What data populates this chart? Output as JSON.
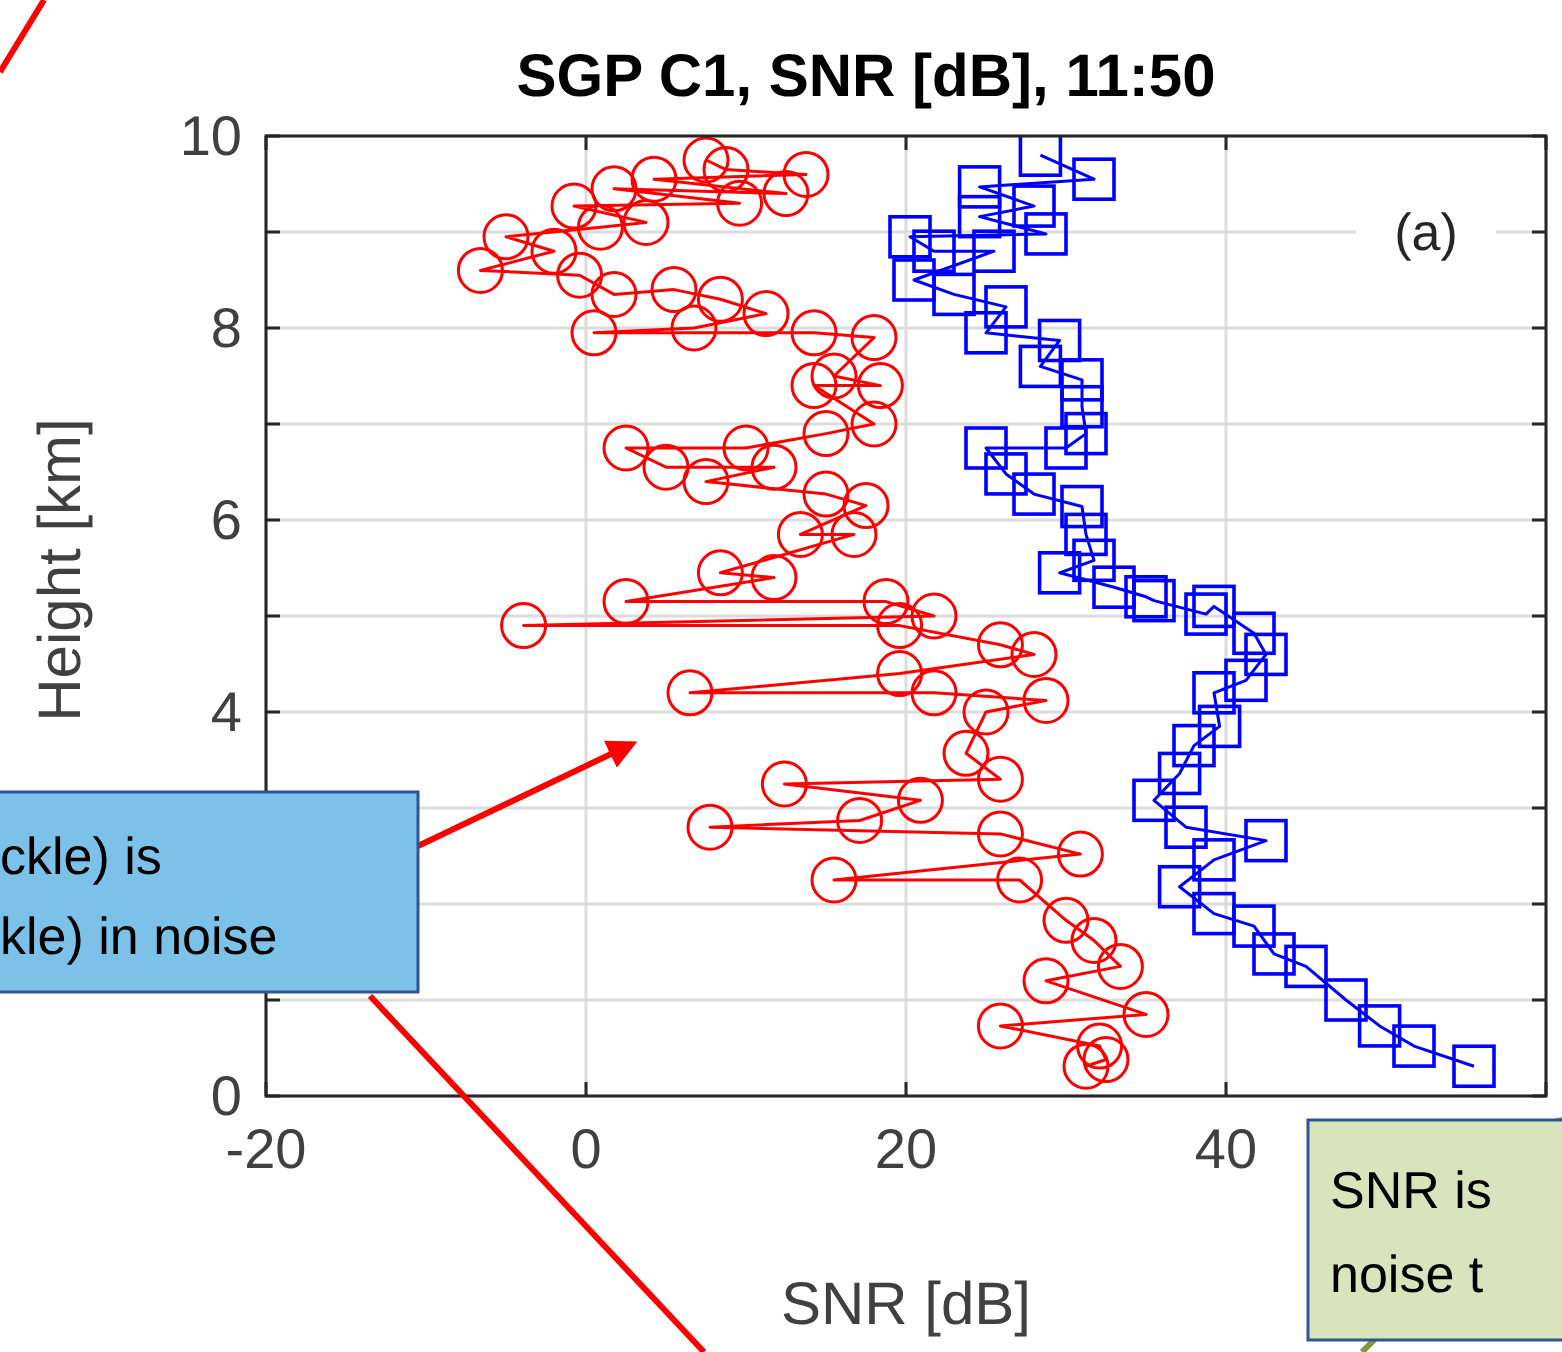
{
  "chart_data": {
    "type": "line",
    "title": "SGP C1, SNR [dB], 11:50",
    "xlabel": "SNR [dB]",
    "ylabel": "Height [km]",
    "xlim": [
      -20,
      60
    ],
    "xticks": [
      -20,
      0,
      20,
      40,
      {
        "value": 60,
        "label": null
      }
    ],
    "ylim": [
      0,
      10
    ],
    "yticks": [
      0,
      {
        "value": 1,
        "label": null
      },
      {
        "value": 2,
        "label": null
      },
      {
        "value": 3,
        "label": null
      },
      4,
      {
        "value": 5,
        "label": null
      },
      6,
      {
        "value": 7,
        "label": null
      },
      8,
      {
        "value": 9,
        "label": null
      },
      10
    ],
    "grid": true,
    "annotations": [
      "(a)",
      "ckle) is\nkle) in noise",
      "SNR is\nnoise t"
    ],
    "series": [
      {
        "color": "#ff0000",
        "marker": "circle",
        "x": [
          7.5,
          8.75,
          13.75,
          4.25,
          12.5,
          1.75,
          9.6,
          -0.75,
          3.75,
          0.9,
          -5,
          -2,
          -6.6,
          -0.4,
          1.75,
          5.5,
          8.4,
          11.25,
          6.75,
          0.5,
          14.25,
          18,
          15.5,
          18.4,
          14.25,
          18,
          15,
          10,
          2.5,
          5,
          11.75,
          7.5,
          15,
          17.5,
          13.4,
          16.75,
          8.4,
          11.75,
          2.5,
          18.75,
          21.75,
          -3.9,
          19.6,
          25.9,
          28,
          19.6,
          6.5,
          21.75,
          28.75,
          25,
          23.75,
          25.9,
          12.4,
          20.9,
          17.1,
          7.75,
          25.9,
          30.9,
          15.5,
          27.1,
          30,
          31.75,
          33.4,
          28.75,
          35,
          25.9,
          32.1,
          32.5,
          31.25
        ],
        "values": [
          9.75,
          9.65,
          9.6,
          9.55,
          9.4,
          9.45,
          9.3,
          9.27,
          9.1,
          9.05,
          8.95,
          8.8,
          8.6,
          8.55,
          8.35,
          8.4,
          8.3,
          8.15,
          8,
          7.95,
          7.95,
          7.9,
          7.5,
          7.4,
          7.4,
          7,
          6.9,
          6.75,
          6.75,
          6.55,
          6.55,
          6.4,
          6.27,
          6.15,
          5.85,
          5.85,
          5.45,
          5.4,
          5.15,
          5.15,
          5,
          4.9,
          4.9,
          4.7,
          4.6,
          4.4,
          4.2,
          4.2,
          4.12,
          4,
          3.57,
          3.3,
          3.25,
          3.08,
          2.87,
          2.8,
          2.73,
          2.52,
          2.25,
          2.25,
          1.83,
          1.62,
          1.35,
          1.2,
          0.85,
          0.73,
          0.52,
          0.38,
          0.31
        ]
      },
      {
        "color": "#0000ff",
        "marker": "square",
        "x": [
          28.4,
          31.75,
          24.6,
          28,
          24.6,
          28.75,
          20.25,
          21.75,
          25.5,
          20.5,
          23,
          26.25,
          25,
          29.6,
          28.4,
          31,
          31,
          31.25,
          30,
          25,
          26.25,
          28,
          31,
          31.25,
          31.75,
          29.6,
          33,
          35,
          35.5,
          38.75,
          39.25,
          41.75,
          42.5,
          41.25,
          39.25,
          39.6,
          38,
          37.1,
          35.5,
          37.5,
          42.5,
          39.25,
          37.1,
          39.25,
          41.75,
          43,
          45,
          47.5,
          49.6,
          51.75,
          55.5
        ],
        "values": [
          9.8,
          9.55,
          9.47,
          9.27,
          9.16,
          8.98,
          8.95,
          8.8,
          8.8,
          8.5,
          8.35,
          8.22,
          7.95,
          7.87,
          7.6,
          7.46,
          7.18,
          6.9,
          6.75,
          6.75,
          6.48,
          6.27,
          6.14,
          5.85,
          5.58,
          5.45,
          5.3,
          5.2,
          5.16,
          5.02,
          5.1,
          4.82,
          4.6,
          4.33,
          4.2,
          3.85,
          3.65,
          3.36,
          3.08,
          2.8,
          2.66,
          2.46,
          2.18,
          1.9,
          1.77,
          1.48,
          1.35,
          1,
          0.73,
          0.52,
          0.31
        ]
      }
    ]
  }
}
